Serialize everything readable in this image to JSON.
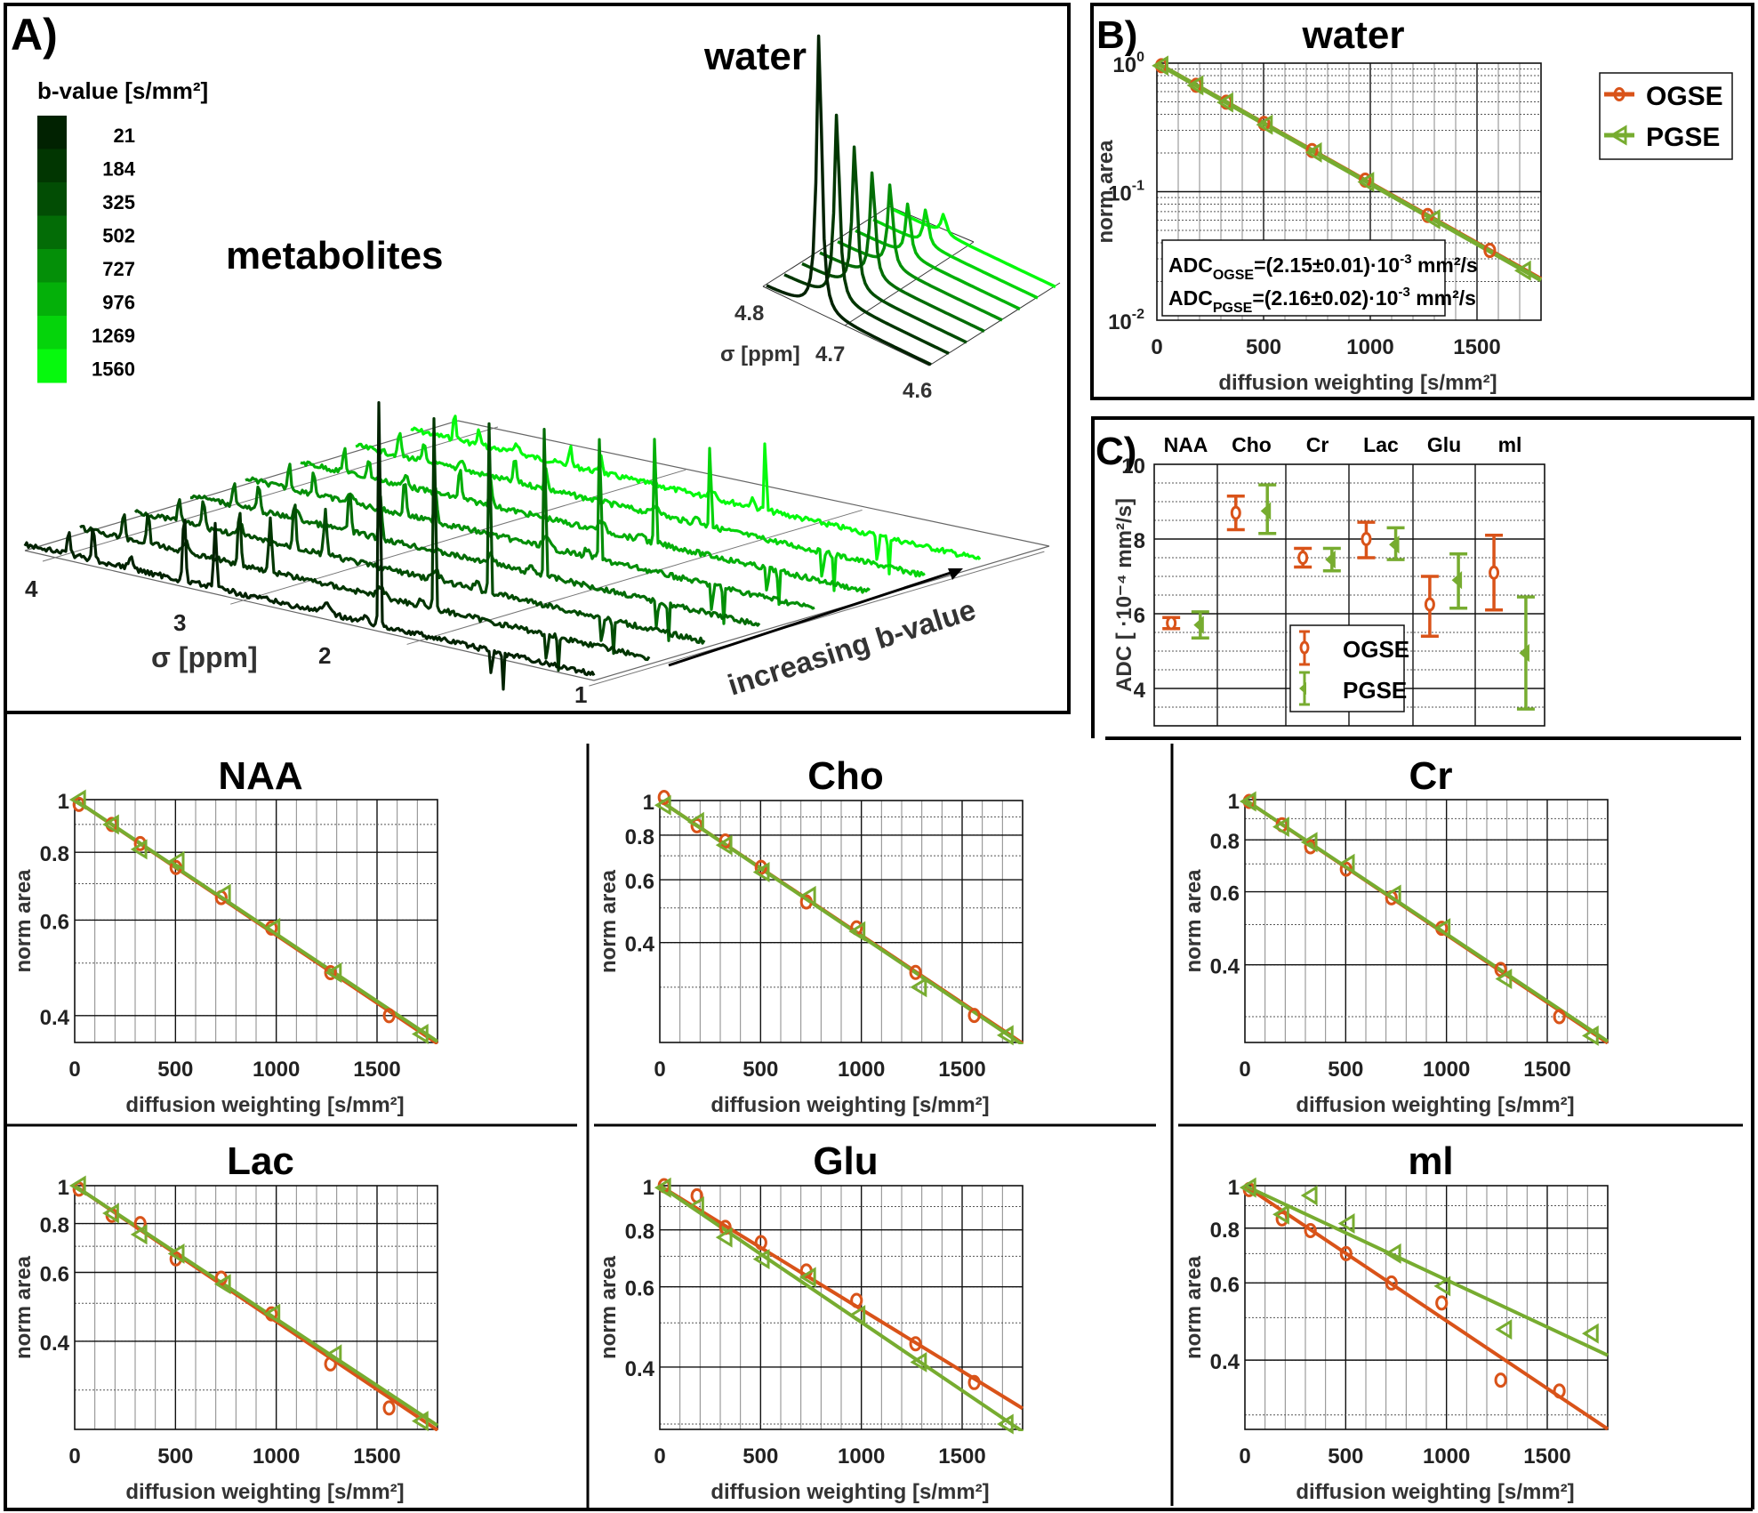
{
  "figure": {
    "panel_labels": {
      "A": "A)",
      "B": "B)",
      "C": "C)"
    }
  },
  "colors": {
    "ogse": "#D95319",
    "pgse": "#77AC30",
    "bvalue_scale": [
      "#012201",
      "#013601",
      "#024d04",
      "#036c06",
      "#048f08",
      "#04b009",
      "#05d40b",
      "#06f90d"
    ]
  },
  "panel_a": {
    "colorbar_title": "b-value [s/mm²]",
    "colorbar_values": [
      "21",
      "184",
      "325",
      "502",
      "727",
      "976",
      "1269",
      "1560"
    ],
    "metabolites_label": "metabolites",
    "water_label": "water",
    "ppm_axis_label": "σ [ppm]",
    "ppm_ticks": [
      "4",
      "3",
      "2",
      "1"
    ],
    "water_ppm_axis_label": "σ [ppm]",
    "water_ppm_ticks": [
      "4.8",
      "4.7",
      "4.6"
    ],
    "arrow_label": "increasing b-value"
  },
  "chart_data": [
    {
      "id": "water",
      "type": "scatter",
      "title": "water",
      "xlabel": "diffusion weighting [s/mm²]",
      "ylabel": "norm area",
      "xlim": [
        0,
        1800
      ],
      "ylim": [
        0.01,
        1
      ],
      "yscale": "log",
      "xticks": [
        "0",
        "500",
        "1000",
        "1500"
      ],
      "yticks": [
        {
          "v": 1,
          "base": "10",
          "exp": "0"
        },
        {
          "v": 0.1,
          "base": "10",
          "exp": "-1"
        },
        {
          "v": 0.01,
          "base": "10",
          "exp": "-2"
        }
      ],
      "legend": {
        "position": "top-right",
        "entries": [
          "OGSE",
          "PGSE"
        ]
      },
      "annotation": [
        {
          "prefix": "ADC",
          "sub": "OGSE",
          "text": "=(2.15±0.01)·10",
          "exp": "-3",
          "unit": " mm²/s"
        },
        {
          "prefix": "ADC",
          "sub": "PGSE",
          "text": "=(2.16±0.02)·10",
          "exp": "-3",
          "unit": " mm²/s"
        }
      ],
      "series": [
        {
          "name": "OGSE",
          "x": [
            21,
            184,
            325,
            502,
            727,
            976,
            1269,
            1560
          ],
          "y": [
            0.956,
            0.673,
            0.497,
            0.34,
            0.209,
            0.123,
            0.0653,
            0.0349
          ],
          "fit_adc": 0.00215
        },
        {
          "name": "PGSE",
          "x": [
            21,
            185,
            325,
            510,
            740,
            985,
            1295,
            1720
          ],
          "y": [
            0.956,
            0.672,
            0.495,
            0.332,
            0.202,
            0.119,
            0.061,
            0.0243
          ],
          "fit_adc": 0.00216
        }
      ]
    },
    {
      "id": "adc",
      "type": "errorbar",
      "title": "",
      "xlabel": "",
      "ylabel": "ADC [ ·10⁻⁴ mm²/s]",
      "ylim": [
        3,
        10
      ],
      "yticks": [
        "4",
        "6",
        "8",
        "10"
      ],
      "categories": [
        "NAA",
        "Cho",
        "Cr",
        "Lac",
        "Glu",
        "ml"
      ],
      "legend": {
        "position": "bottom-center",
        "entries": [
          "OGSE",
          "PGSE"
        ]
      },
      "series": [
        {
          "name": "OGSE",
          "values": [
            5.75,
            8.7,
            7.5,
            8.0,
            6.25,
            7.1
          ],
          "lower": [
            5.6,
            8.25,
            7.25,
            7.5,
            5.4,
            6.1
          ],
          "upper": [
            5.9,
            9.15,
            7.75,
            8.45,
            7.0,
            8.1
          ]
        },
        {
          "name": "PGSE",
          "values": [
            5.7,
            8.75,
            7.45,
            7.85,
            6.9,
            4.95
          ],
          "lower": [
            5.35,
            8.15,
            7.15,
            7.45,
            6.15,
            3.45
          ],
          "upper": [
            6.05,
            9.45,
            7.75,
            8.3,
            7.6,
            6.45
          ]
        }
      ]
    },
    {
      "id": "naa",
      "type": "scatter",
      "title": "NAA",
      "xlabel": "diffusion weighting [s/mm²]",
      "ylabel": "norm area",
      "xlim": [
        0,
        1800
      ],
      "ylim": [
        0.357,
        1
      ],
      "yscale": "log",
      "xticks": [
        "0",
        "500",
        "1000",
        "1500"
      ],
      "yticks": [
        "1",
        "0.8",
        "0.6",
        "0.4"
      ],
      "series": [
        {
          "name": "OGSE",
          "x": [
            21,
            184,
            325,
            502,
            727,
            976,
            1269,
            1560
          ],
          "y": [
            0.98,
            0.9,
            0.83,
            0.75,
            0.66,
            0.58,
            0.48,
            0.4
          ],
          "fit_adc": 0.000575
        },
        {
          "name": "PGSE",
          "x": [
            21,
            185,
            325,
            510,
            740,
            985,
            1290,
            1720
          ],
          "y": [
            1.0,
            0.9,
            0.81,
            0.77,
            0.67,
            0.58,
            0.48,
            0.37
          ],
          "fit_adc": 0.00057
        }
      ]
    },
    {
      "id": "cho",
      "type": "scatter",
      "title": "Cho",
      "xlabel": "diffusion weighting [s/mm²]",
      "ylabel": "norm area",
      "xlim": [
        0,
        1800
      ],
      "ylim": [
        0.21,
        1
      ],
      "yscale": "log",
      "xticks": [
        "0",
        "500",
        "1000",
        "1500"
      ],
      "yticks": [
        "1",
        "0.8",
        "0.6",
        "0.4"
      ],
      "series": [
        {
          "name": "OGSE",
          "x": [
            21,
            184,
            325,
            502,
            727,
            976,
            1269,
            1560
          ],
          "y": [
            1.02,
            0.85,
            0.77,
            0.65,
            0.52,
            0.44,
            0.33,
            0.25
          ],
          "fit_adc": 0.00087
        },
        {
          "name": "PGSE",
          "x": [
            21,
            185,
            325,
            510,
            740,
            985,
            1290,
            1720
          ],
          "y": [
            0.97,
            0.87,
            0.75,
            0.63,
            0.54,
            0.43,
            0.3,
            0.22
          ],
          "fit_adc": 0.000875
        }
      ]
    },
    {
      "id": "cr",
      "type": "scatter",
      "title": "Cr",
      "xlabel": "diffusion weighting [s/mm²]",
      "ylabel": "norm area",
      "xlim": [
        0,
        1800
      ],
      "ylim": [
        0.26,
        1
      ],
      "yscale": "log",
      "xticks": [
        "0",
        "500",
        "1000",
        "1500"
      ],
      "yticks": [
        "1",
        "0.8",
        "0.6",
        "0.4"
      ],
      "series": [
        {
          "name": "OGSE",
          "x": [
            21,
            184,
            325,
            502,
            727,
            976,
            1269,
            1560
          ],
          "y": [
            0.99,
            0.87,
            0.77,
            0.68,
            0.58,
            0.49,
            0.39,
            0.3
          ],
          "fit_adc": 0.00075
        },
        {
          "name": "PGSE",
          "x": [
            21,
            185,
            325,
            510,
            740,
            985,
            1290,
            1720
          ],
          "y": [
            0.99,
            0.86,
            0.79,
            0.7,
            0.59,
            0.49,
            0.37,
            0.27
          ],
          "fit_adc": 0.000745
        }
      ]
    },
    {
      "id": "lac",
      "type": "scatter",
      "title": "Lac",
      "xlabel": "diffusion weighting [s/mm²]",
      "ylabel": "norm area",
      "xlim": [
        0,
        1800
      ],
      "ylim": [
        0.238,
        1
      ],
      "yscale": "log",
      "xticks": [
        "0",
        "500",
        "1000",
        "1500"
      ],
      "yticks": [
        "1",
        "0.8",
        "0.6",
        "0.4"
      ],
      "series": [
        {
          "name": "OGSE",
          "x": [
            21,
            184,
            325,
            502,
            727,
            976,
            1269,
            1560
          ],
          "y": [
            0.98,
            0.84,
            0.8,
            0.65,
            0.58,
            0.47,
            0.35,
            0.27
          ],
          "fit_adc": 0.0008
        },
        {
          "name": "PGSE",
          "x": [
            21,
            185,
            325,
            510,
            740,
            985,
            1290,
            1720
          ],
          "y": [
            1.0,
            0.85,
            0.75,
            0.67,
            0.56,
            0.47,
            0.37,
            0.25
          ],
          "fit_adc": 0.000785
        }
      ]
    },
    {
      "id": "glu",
      "type": "scatter",
      "title": "Glu",
      "xlabel": "diffusion weighting [s/mm²]",
      "ylabel": "norm area",
      "xlim": [
        0,
        1800
      ],
      "ylim": [
        0.292,
        1
      ],
      "yscale": "log",
      "xticks": [
        "0",
        "500",
        "1000",
        "1500"
      ],
      "yticks": [
        "1",
        "0.8",
        "0.6",
        "0.4"
      ],
      "series": [
        {
          "name": "OGSE",
          "x": [
            21,
            184,
            325,
            502,
            727,
            976,
            1269,
            1560
          ],
          "y": [
            1.0,
            0.95,
            0.81,
            0.75,
            0.65,
            0.56,
            0.45,
            0.37
          ],
          "fit_adc": 0.000625
        },
        {
          "name": "PGSE",
          "x": [
            21,
            185,
            325,
            510,
            740,
            985,
            1290,
            1720
          ],
          "y": [
            0.99,
            0.9,
            0.77,
            0.69,
            0.63,
            0.52,
            0.41,
            0.3
          ],
          "fit_adc": 0.00069
        }
      ]
    },
    {
      "id": "mi",
      "type": "scatter",
      "title": "ml",
      "xlabel": "diffusion weighting [s/mm²]",
      "ylabel": "norm area",
      "xlim": [
        0,
        1800
      ],
      "ylim": [
        0.278,
        1
      ],
      "yscale": "log",
      "xticks": [
        "0",
        "500",
        "1000",
        "1500"
      ],
      "yticks": [
        "1",
        "0.8",
        "0.6",
        "0.4"
      ],
      "series": [
        {
          "name": "OGSE",
          "x": [
            21,
            184,
            325,
            502,
            727,
            976,
            1269,
            1560
          ],
          "y": [
            0.98,
            0.84,
            0.79,
            0.7,
            0.6,
            0.54,
            0.36,
            0.34
          ],
          "fit_adc": 0.00071
        },
        {
          "name": "PGSE",
          "x": [
            21,
            185,
            325,
            510,
            740,
            985,
            1290,
            1720
          ],
          "y": [
            0.99,
            0.86,
            0.95,
            0.82,
            0.7,
            0.59,
            0.47,
            0.46
          ],
          "fit_adc": 0.000495
        }
      ]
    }
  ]
}
